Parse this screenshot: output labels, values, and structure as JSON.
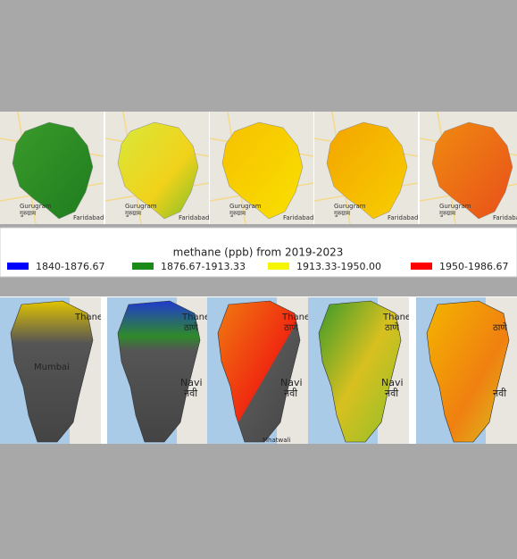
{
  "legend": {
    "title": "methane (ppb) from 2019-2023",
    "items": [
      {
        "label": "1840-1876.67",
        "color": "#0000ff"
      },
      {
        "label": "1876.67-1913.33",
        "color": "#1a8a1a"
      },
      {
        "label": "1913.33-1950.00",
        "color": "#f5f500"
      },
      {
        "label": "1950-1986.67",
        "color": "#ff0000"
      }
    ]
  },
  "top_panels": [
    {
      "city": "Gurugram",
      "city_local": "गुरुग्राम",
      "neighbor": "Faridabad"
    },
    {
      "city": "Gurugram",
      "city_local": "गुरुग्राम",
      "neighbor": "Faridabad"
    },
    {
      "city": "Gurugram",
      "city_local": "गुरुग्राम",
      "neighbor": "Faridabad"
    },
    {
      "city": "Gurugram",
      "city_local": "गुरुग्राम",
      "neighbor": "Faridabad"
    },
    {
      "city": "Gurugram",
      "city_local": "गुरुग्राम",
      "neighbor": "Faridabad"
    }
  ],
  "bottom_panels": [
    {
      "north": "Thane",
      "city": "Mumbai"
    },
    {
      "north": "Thane",
      "north_local": "ठाणे",
      "east": "Navi",
      "east_local": "नवी"
    },
    {
      "north": "Thane",
      "north_local": "ठाणे",
      "east": "Navi",
      "east_local": "नवी",
      "south": "Mhatwali"
    },
    {
      "north": "Thane",
      "north_local": "ठाणे",
      "east": "Navi",
      "east_local": "नवी"
    },
    {
      "north_local": "ठाणे",
      "east_local": "नवी"
    }
  ]
}
